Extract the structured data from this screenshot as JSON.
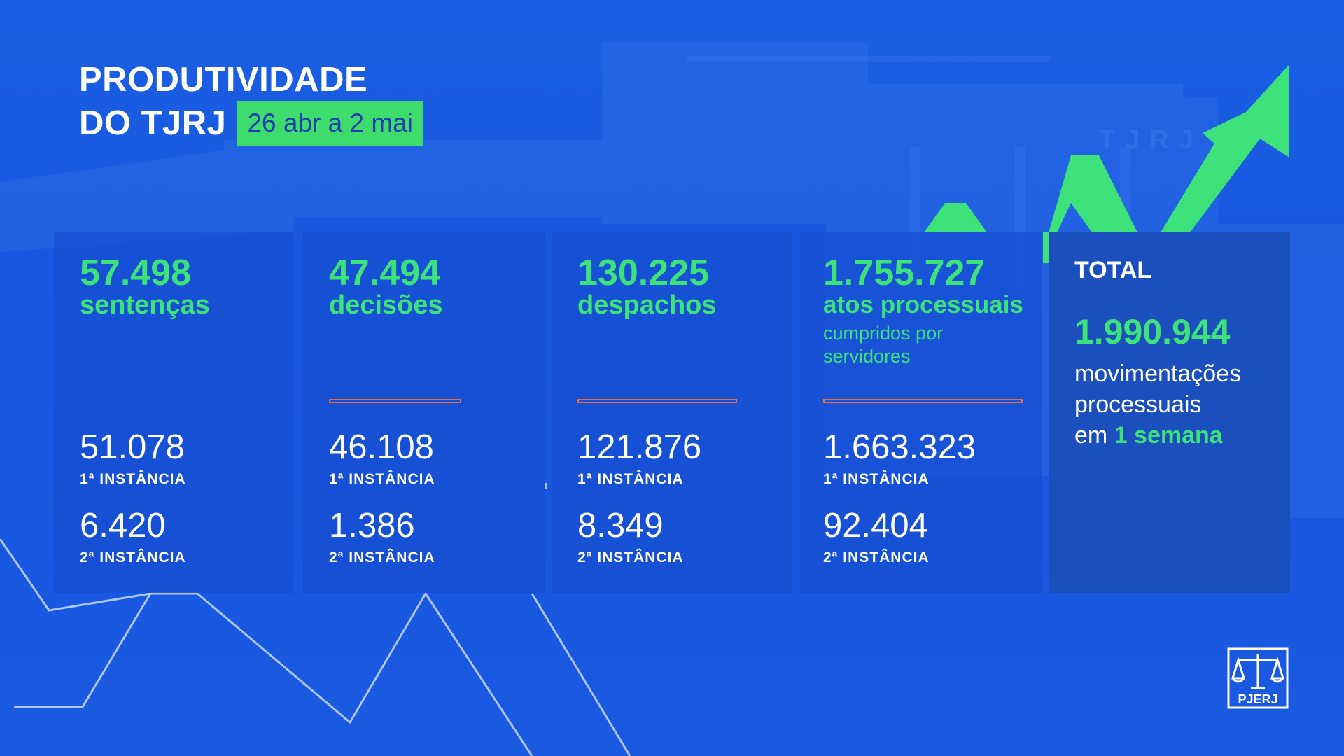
{
  "header": {
    "title_line1": "PRODUTIVIDADE",
    "title_line2": "DO TJRJ",
    "date_range": "26 abr a 2 mai"
  },
  "background": {
    "building_sign": "TJRJ"
  },
  "cards": [
    {
      "value": "57.498",
      "label": "sentenças",
      "sub_line1": "",
      "sub_line2": "",
      "first_value": "51.078",
      "first_label": "1ª INSTÂNCIA",
      "second_value": "6.420",
      "second_label": "2ª INSTÂNCIA"
    },
    {
      "value": "47.494",
      "label": "decisões",
      "sub_line1": "",
      "sub_line2": "",
      "first_value": "46.108",
      "first_label": "1ª INSTÂNCIA",
      "second_value": "1.386",
      "second_label": "2ª INSTÂNCIA"
    },
    {
      "value": "130.225",
      "label": "despachos",
      "sub_line1": "",
      "sub_line2": "",
      "first_value": "121.876",
      "first_label": "1ª INSTÂNCIA",
      "second_value": "8.349",
      "second_label": "2ª INSTÂNCIA"
    },
    {
      "value": "1.755.727",
      "label": "atos processuais",
      "sub_line1": "cumpridos por",
      "sub_line2": "servidores",
      "first_value": "1.663.323",
      "first_label": "1ª INSTÂNCIA",
      "second_value": "92.404",
      "second_label": "2ª INSTÂNCIA"
    }
  ],
  "total": {
    "heading": "TOTAL",
    "value": "1.990.944",
    "desc_line1": "movimentações",
    "desc_line2": "processuais",
    "desc_line3_pre": "em",
    "desc_line3_highlight": "1 semana"
  },
  "logo": {
    "text": "PJERJ",
    "icon": "scales-of-justice-icon"
  },
  "colors": {
    "background": "#1a5ae0",
    "accent_green": "#3ee27a",
    "divider_orange": "#ef6b3f",
    "total_card": "#1b4fbd"
  }
}
